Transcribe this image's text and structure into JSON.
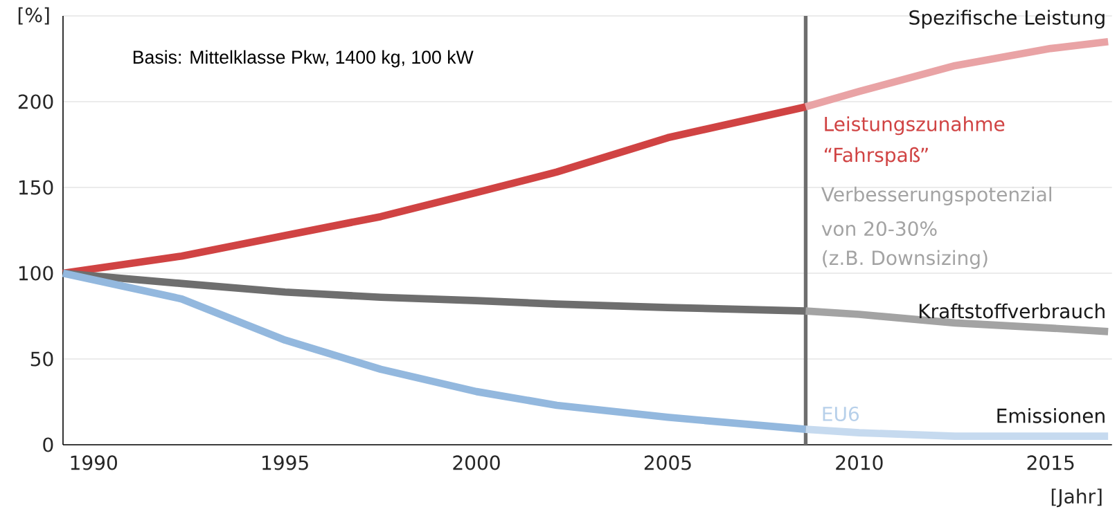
{
  "chart_data": {
    "type": "line",
    "xlabel": "[Jahr]",
    "ylabel": "[%]",
    "xlim": [
      1989.2,
      2016.6
    ],
    "ylim": [
      0,
      250
    ],
    "xticks": [
      1990,
      1995,
      2000,
      2005,
      2010,
      2015
    ],
    "yticks": [
      0,
      50,
      100,
      150,
      200,
      {
        "value": 250,
        "label": null
      }
    ],
    "grid": "y",
    "series": [
      {
        "color": "#d04343",
        "x": [
          1989.2,
          1992.3,
          1995,
          1997.5,
          2000,
          2002.1,
          2005,
          2008.6
        ],
        "values": [
          100,
          110,
          122,
          133,
          147,
          159,
          179,
          197
        ]
      },
      {
        "name": "Spezifische Leistung",
        "color": "#e9a3a5",
        "x": [
          2008.6,
          2010,
          2012.5,
          2015,
          2016.5
        ],
        "values": [
          197,
          206,
          221,
          231,
          235
        ]
      },
      {
        "color": "#6e6e6e",
        "x": [
          1989.2,
          1992.3,
          1995,
          1997.5,
          2000,
          2002.1,
          2005,
          2008.6
        ],
        "values": [
          100,
          94,
          89,
          86,
          84,
          82,
          80,
          78
        ]
      },
      {
        "name": "Kraftstoffverbrauch",
        "color": "#a3a3a3",
        "x": [
          2008.6,
          2010,
          2012.5,
          2015,
          2016.5
        ],
        "values": [
          78,
          76,
          71,
          68,
          66
        ]
      },
      {
        "color": "#93b8de",
        "x": [
          1989.2,
          1992.3,
          1995,
          1997.5,
          2000,
          2002.1,
          2005,
          2008.6
        ],
        "values": [
          100,
          85,
          61,
          44,
          31,
          23,
          16,
          9
        ]
      },
      {
        "name": "Emissionen",
        "color": "#c6daef",
        "x": [
          2008.6,
          2010,
          2012.5,
          2015,
          2016.5
        ],
        "values": [
          9,
          7,
          5,
          5,
          5
        ]
      }
    ],
    "ref_lines": [
      {
        "axis": "x",
        "value": 2008.6,
        "color": "#6e6e6e"
      }
    ],
    "annotations": [
      "Basis: Mittelklasse Pkw, 1400 kg, 100 kW",
      "Leistungszunahme",
      "“Fahrspaß”",
      "Verbesserungspotenzial",
      "von 20-30%",
      "(z.B. Downsizing)",
      "EU6"
    ]
  }
}
